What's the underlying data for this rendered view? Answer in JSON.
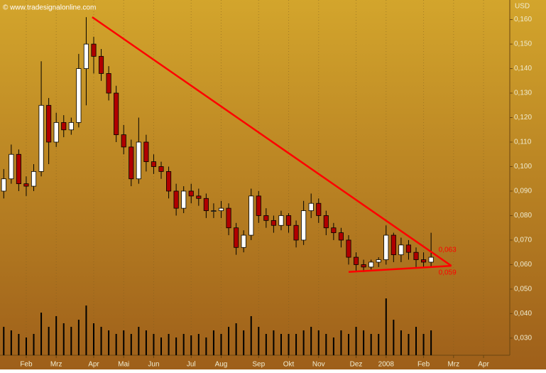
{
  "chart_data": {
    "type": "candlestick",
    "title": "© www.tradesignalonline.com",
    "y_axis_label": "USD",
    "categories": [
      null,
      null,
      null,
      "Feb",
      null,
      null,
      null,
      "Mrz",
      null,
      null,
      null,
      null,
      "Apr",
      null,
      null,
      null,
      "Mai",
      null,
      null,
      null,
      "Jun",
      null,
      null,
      null,
      null,
      "Jul",
      null,
      null,
      null,
      "Aug",
      null,
      null,
      null,
      null,
      "Sep",
      null,
      null,
      null,
      "Okt",
      null,
      null,
      null,
      "Nov",
      null,
      null,
      null,
      null,
      "Dez",
      null,
      null,
      null,
      "2008",
      null,
      null,
      null,
      null,
      "Feb",
      null,
      null,
      null,
      "Mrz",
      null,
      null,
      null,
      "Apr",
      null,
      null,
      null
    ],
    "open": [
      0.09,
      0.095,
      0.105,
      0.093,
      0.092,
      0.098,
      0.125,
      0.11,
      0.118,
      0.115,
      0.118,
      0.14,
      0.15,
      0.145,
      0.138,
      0.13,
      0.113,
      0.108,
      0.095,
      0.11,
      0.102,
      0.1,
      0.098,
      0.09,
      0.083,
      0.09,
      0.088,
      0.087,
      0.082,
      0.082,
      0.083,
      0.075,
      0.067,
      0.072,
      0.088,
      0.08,
      0.078,
      0.076,
      0.08,
      0.076,
      0.07,
      0.082,
      0.085,
      0.08,
      0.075,
      0.073,
      0.07,
      0.063,
      0.06,
      0.059,
      0.061,
      0.062,
      0.072,
      0.064,
      0.068,
      0.065,
      0.062,
      0.061,
      null,
      null,
      null,
      null,
      null,
      null,
      null,
      null,
      null,
      null
    ],
    "high": [
      0.099,
      0.109,
      0.107,
      0.096,
      0.101,
      0.143,
      0.128,
      0.122,
      0.121,
      0.12,
      0.146,
      0.161,
      0.153,
      0.148,
      0.141,
      0.133,
      0.117,
      0.111,
      0.12,
      0.113,
      0.105,
      0.102,
      0.1,
      0.093,
      0.092,
      0.093,
      0.091,
      0.089,
      0.085,
      0.086,
      0.085,
      0.077,
      0.074,
      0.091,
      0.09,
      0.083,
      0.08,
      0.082,
      0.081,
      0.078,
      0.086,
      0.089,
      0.087,
      0.082,
      0.077,
      0.075,
      0.072,
      0.065,
      0.062,
      0.062,
      0.063,
      0.076,
      0.073,
      0.071,
      0.07,
      0.067,
      0.065,
      0.073,
      null,
      null,
      null,
      null,
      null,
      null,
      null,
      null,
      null,
      null
    ],
    "low": [
      0.087,
      0.093,
      0.09,
      0.088,
      0.09,
      0.096,
      0.101,
      0.108,
      0.112,
      0.113,
      0.116,
      0.125,
      0.138,
      0.135,
      0.127,
      0.11,
      0.105,
      0.092,
      0.093,
      0.098,
      0.097,
      0.095,
      0.087,
      0.08,
      0.081,
      0.085,
      0.084,
      0.079,
      0.079,
      0.079,
      0.072,
      0.064,
      0.065,
      0.07,
      0.077,
      0.075,
      0.073,
      0.074,
      0.073,
      0.067,
      0.068,
      0.079,
      0.077,
      0.072,
      0.07,
      0.067,
      0.06,
      0.057,
      0.057,
      0.058,
      0.059,
      0.06,
      0.061,
      0.061,
      0.062,
      0.059,
      0.059,
      0.059,
      null,
      null,
      null,
      null,
      null,
      null,
      null,
      null,
      null,
      null
    ],
    "close": [
      0.095,
      0.105,
      0.093,
      0.092,
      0.098,
      0.125,
      0.11,
      0.118,
      0.115,
      0.118,
      0.14,
      0.15,
      0.145,
      0.138,
      0.13,
      0.113,
      0.108,
      0.095,
      0.11,
      0.102,
      0.1,
      0.098,
      0.09,
      0.083,
      0.09,
      0.088,
      0.087,
      0.082,
      0.082,
      0.083,
      0.075,
      0.067,
      0.072,
      0.088,
      0.08,
      0.078,
      0.076,
      0.08,
      0.076,
      0.07,
      0.082,
      0.085,
      0.08,
      0.075,
      0.073,
      0.07,
      0.063,
      0.06,
      0.059,
      0.061,
      0.062,
      0.072,
      0.064,
      0.068,
      0.065,
      0.062,
      0.061,
      0.063,
      null,
      null,
      null,
      null,
      null,
      null,
      null,
      null,
      null,
      null
    ],
    "volume": [
      40,
      35,
      30,
      25,
      30,
      60,
      40,
      55,
      45,
      40,
      50,
      70,
      45,
      40,
      35,
      30,
      35,
      30,
      40,
      35,
      30,
      25,
      30,
      25,
      30,
      28,
      30,
      25,
      35,
      30,
      40,
      45,
      35,
      55,
      40,
      30,
      35,
      30,
      30,
      30,
      35,
      40,
      35,
      30,
      25,
      35,
      30,
      40,
      35,
      30,
      30,
      80,
      50,
      35,
      30,
      40,
      30,
      35,
      null,
      null,
      null,
      null,
      null,
      null,
      null,
      null,
      null,
      null
    ],
    "volume_lim": [
      0,
      100
    ],
    "up_color": "#ffffff",
    "down_color": "#b00000",
    "volume_color": "#000000",
    "ylim": [
      0.023,
      0.168
    ],
    "yticks": [
      {
        "value": 0.03,
        "label": "0,030"
      },
      {
        "value": 0.04,
        "label": "0,040"
      },
      {
        "value": 0.05,
        "label": "0,050"
      },
      {
        "value": 0.06,
        "label": "0,060"
      },
      {
        "value": 0.07,
        "label": "0,070"
      },
      {
        "value": 0.08,
        "label": "0,080"
      },
      {
        "value": 0.09,
        "label": "0,090"
      },
      {
        "value": 0.1,
        "label": "0,100"
      },
      {
        "value": 0.11,
        "label": "0,110"
      },
      {
        "value": 0.12,
        "label": "0,120"
      },
      {
        "value": 0.13,
        "label": "0,130"
      },
      {
        "value": 0.14,
        "label": "0,140"
      },
      {
        "value": 0.15,
        "label": "0,150"
      },
      {
        "value": 0.16,
        "label": "0,160"
      }
    ],
    "trendlines": [
      {
        "x": [
          11.8,
          59.7
        ],
        "y": [
          0.161,
          0.0595
        ],
        "color": "#ff0000"
      },
      {
        "x": [
          46,
          59.7
        ],
        "y": [
          0.057,
          0.0595
        ],
        "color": "#ff0000"
      }
    ],
    "annotations": [
      {
        "value": 0.063,
        "label": "0,063",
        "color": "#ff0000"
      },
      {
        "value": 0.059,
        "label": "0,059",
        "color": "#ff0000"
      }
    ]
  }
}
